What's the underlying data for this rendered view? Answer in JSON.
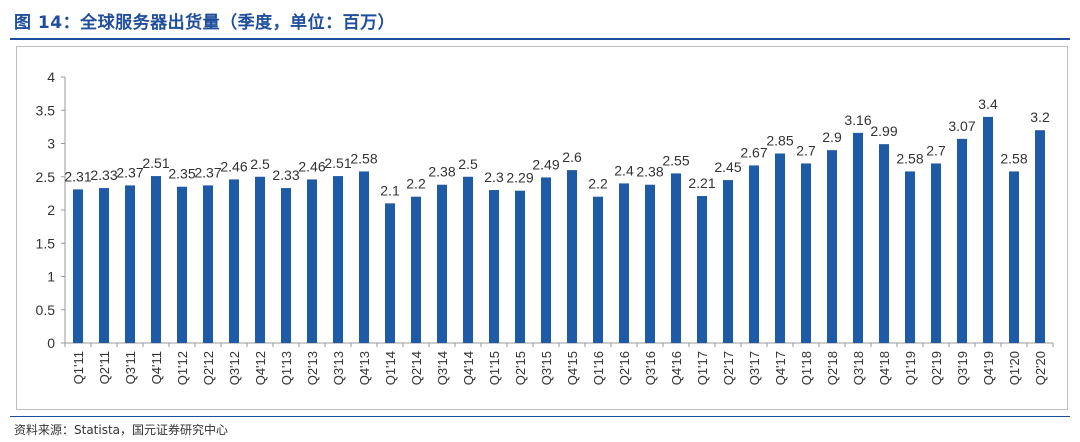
{
  "page": {
    "title": "图 14：全球服务器出货量（季度，单位：百万）",
    "source": "资料来源：Statista，国元证券研究中心"
  },
  "colors": {
    "bar": "#1f5aa6",
    "title": "#1f4e9c"
  },
  "chart_data": {
    "type": "bar",
    "title": "",
    "xlabel": "",
    "ylabel": "",
    "ylim": [
      0,
      4
    ],
    "yticks": [
      "0",
      "0.5",
      "1",
      "1.5",
      "2",
      "2.5",
      "3",
      "3.5",
      "4"
    ],
    "grid": false,
    "legend": "none",
    "categories": [
      "Q1'11",
      "Q2'11",
      "Q3'11",
      "Q4'11",
      "Q1'12",
      "Q2'12",
      "Q3'12",
      "Q4'12",
      "Q1'13",
      "Q2'13",
      "Q3'13",
      "Q4'13",
      "Q1'14",
      "Q2'14",
      "Q3'14",
      "Q4'14",
      "Q1'15",
      "Q2'15",
      "Q3'15",
      "Q4'15",
      "Q1'16",
      "Q2'16",
      "Q3'16",
      "Q4'16",
      "Q1'17",
      "Q2'17",
      "Q3'17",
      "Q4'17",
      "Q1'18",
      "Q2'18",
      "Q3'18",
      "Q4'18",
      "Q1'19",
      "Q2'19",
      "Q3'19",
      "Q4'19",
      "Q1'20",
      "Q2'20"
    ],
    "values": [
      2.31,
      2.33,
      2.37,
      2.51,
      2.35,
      2.37,
      2.46,
      2.5,
      2.33,
      2.46,
      2.51,
      2.58,
      2.1,
      2.2,
      2.38,
      2.5,
      2.3,
      2.29,
      2.49,
      2.6,
      2.2,
      2.4,
      2.38,
      2.55,
      2.21,
      2.45,
      2.67,
      2.85,
      2.7,
      2.9,
      3.16,
      2.99,
      2.58,
      2.7,
      3.07,
      3.4,
      2.58,
      3.2
    ],
    "labels": [
      "2.31",
      "2.33",
      "2.37",
      "2.51",
      "2.35",
      "2.37",
      "2.46",
      "2.5",
      "2.33",
      "2.46",
      "2.51",
      "2.58",
      "2.1",
      "2.2",
      "2.38",
      "2.5",
      "2.3",
      "2.29",
      "2.49",
      "2.6",
      "2.2",
      "2.4",
      "2.38",
      "2.55",
      "2.21",
      "2.45",
      "2.67",
      "2.85",
      "2.7",
      "2.9",
      "3.16",
      "2.99",
      "2.58",
      "2.7",
      "3.07",
      "3.4",
      "2.58",
      "3.2"
    ]
  }
}
